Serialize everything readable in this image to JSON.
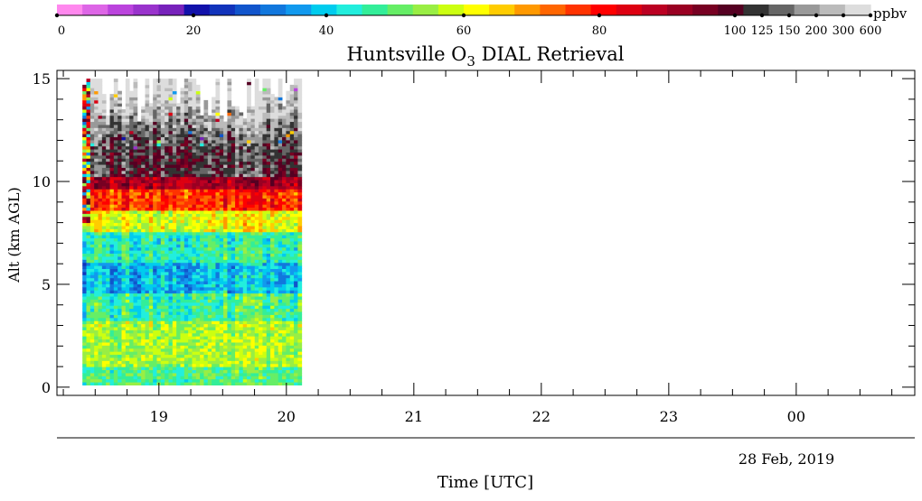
{
  "chart_data": {
    "type": "heatmap",
    "title": {
      "prefix": "Huntsville O",
      "subscript": "3",
      "suffix": " DIAL Retrieval"
    },
    "xlabel": "Time [UTC]",
    "ylabel": "Alt (km AGL)",
    "date_label": "28 Feb, 2019",
    "x_ticks": [
      "19",
      "20",
      "21",
      "22",
      "23",
      "00"
    ],
    "x_tick_hours": [
      19,
      20,
      21,
      22,
      23,
      24
    ],
    "x_range_hours": [
      18.2,
      24.93
    ],
    "y_ticks": [
      0,
      5,
      10,
      15
    ],
    "y_range_km": [
      -0.4,
      15.4
    ],
    "data_extent": {
      "t_start_hours": 18.4,
      "t_end_hours": 20.12,
      "alt_min_km": 0.1,
      "alt_max_km": 15.0
    },
    "colorbar": {
      "unit": "ppbv",
      "tick_labels": [
        "0",
        "20",
        "40",
        "60",
        "80",
        "100",
        "125",
        "150",
        "200",
        "300",
        "600"
      ],
      "colors": [
        "#ff88ee",
        "#dd66e6",
        "#bb44dd",
        "#9933cc",
        "#7722bb",
        "#1111aa",
        "#1133bb",
        "#1155cc",
        "#1177dd",
        "#1199ee",
        "#00ccee",
        "#22eedd",
        "#33ee99",
        "#66ee66",
        "#99ee44",
        "#ccff11",
        "#ffff00",
        "#ffcc00",
        "#ff9900",
        "#ff6600",
        "#ff3300",
        "#ff0000",
        "#dd0011",
        "#bb0022",
        "#990022",
        "#770022",
        "#550022",
        "#333333",
        "#666666",
        "#999999",
        "#bbbbbb",
        "#dddddd"
      ]
    }
  }
}
